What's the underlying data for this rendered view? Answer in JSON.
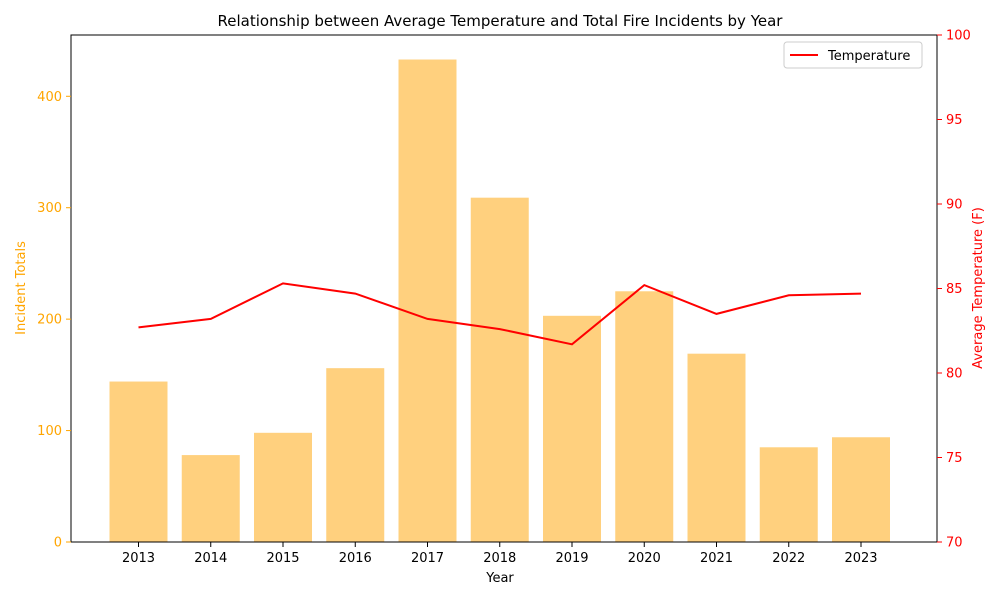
{
  "chart_data": {
    "type": "bar",
    "title": "Relationship between Average Temperature and Total Fire Incidents by Year",
    "xlabel": "Year",
    "ylabel": "Incident Totals",
    "y2label": "Average Temperature (F)",
    "categories": [
      "2013",
      "2014",
      "2015",
      "2016",
      "2017",
      "2018",
      "2019",
      "2020",
      "2021",
      "2022",
      "2023"
    ],
    "series": [
      {
        "type": "bar",
        "axis": "left",
        "values": [
          144,
          78,
          98,
          156,
          433,
          309,
          203,
          225,
          169,
          85,
          94
        ],
        "color": "#ffd07e"
      },
      {
        "name": "Temperature",
        "type": "line",
        "axis": "right",
        "values": [
          82.7,
          83.2,
          85.3,
          84.7,
          83.2,
          82.6,
          81.7,
          85.2,
          83.5,
          84.6,
          84.7
        ],
        "color": "#ff0000"
      }
    ],
    "ylim": [
      0,
      455
    ],
    "y2lim": [
      70,
      100
    ],
    "yticks": [
      0,
      100,
      200,
      300,
      400
    ],
    "y2ticks": [
      70,
      75,
      80,
      85,
      90,
      95,
      100
    ],
    "left_axis_color": "#ffa500",
    "right_axis_color": "#ff0000",
    "grid": false,
    "legend_position": "top-right"
  }
}
